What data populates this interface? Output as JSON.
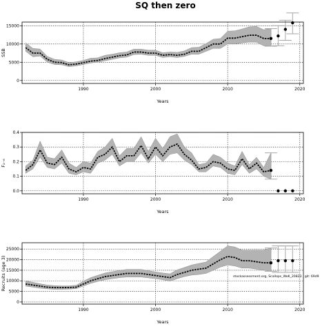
{
  "title": "SQ then zero",
  "note": "stockassessment.org, Scallops_WoK_20823 , git: 69d9",
  "chart_data": [
    {
      "type": "line",
      "ylabel": "SSB",
      "xlabel": "Years",
      "xlim": [
        1981.5,
        2020.5
      ],
      "ylim": [
        -800,
        16000
      ],
      "xticks": [
        1990,
        2000,
        2010,
        2020
      ],
      "yticks": [
        0,
        5000,
        10000,
        15000
      ],
      "ytick_labels": [
        "0",
        "5000",
        "10000",
        "15000"
      ],
      "grid": true,
      "x": [
        1982,
        1983,
        1984,
        1985,
        1986,
        1987,
        1988,
        1989,
        1990,
        1991,
        1992,
        1993,
        1994,
        1995,
        1996,
        1997,
        1998,
        1999,
        2000,
        2001,
        2002,
        2003,
        2004,
        2005,
        2006,
        2007,
        2008,
        2009,
        2010,
        2011,
        2012,
        2013,
        2014,
        2015,
        2016
      ],
      "y": [
        9000,
        7500,
        7500,
        5800,
        5000,
        4900,
        4300,
        4500,
        4900,
        5300,
        5500,
        6000,
        6400,
        6800,
        7000,
        7800,
        7800,
        7500,
        7500,
        6900,
        7100,
        6900,
        7200,
        8000,
        8000,
        9000,
        10000,
        10000,
        11600,
        11600,
        12000,
        12400,
        12400,
        11500,
        11500
      ],
      "lower": [
        8000,
        6500,
        6700,
        5000,
        4400,
        4300,
        3800,
        4000,
        4400,
        4800,
        5000,
        5400,
        5800,
        6200,
        6400,
        7100,
        7200,
        6900,
        6900,
        6300,
        6500,
        6300,
        6600,
        7200,
        7200,
        8000,
        8800,
        8800,
        10000,
        10000,
        10300,
        10500,
        10500,
        9500,
        9400
      ],
      "upper": [
        10300,
        8800,
        8600,
        6600,
        5800,
        5600,
        4900,
        5100,
        5500,
        6100,
        6200,
        6900,
        7200,
        7600,
        7800,
        8600,
        8600,
        8300,
        8300,
        7600,
        7800,
        7700,
        8100,
        9000,
        9100,
        10100,
        11300,
        11500,
        13500,
        13600,
        14100,
        14700,
        14800,
        13900,
        14200
      ],
      "forecast": {
        "x": [
          2017,
          2018,
          2019
        ],
        "y": [
          12200,
          14000,
          15800
        ],
        "lower": [
          9500,
          11000,
          12800
        ],
        "upper": [
          15000,
          16500,
          18500
        ]
      }
    },
    {
      "type": "line",
      "ylabel": "F₂₋₆",
      "xlabel": "Years",
      "xlim": [
        1981.5,
        2020.5
      ],
      "ylim": [
        -0.02,
        0.4
      ],
      "xticks": [
        1990,
        2000,
        2010,
        2020
      ],
      "yticks": [
        0,
        0.1,
        0.2,
        0.3,
        0.4
      ],
      "ytick_labels": [
        "0.0",
        "0.1",
        "0.2",
        "0.3",
        "0.4"
      ],
      "grid": true,
      "x": [
        1982,
        1983,
        1984,
        1985,
        1986,
        1987,
        1988,
        1989,
        1990,
        1991,
        1992,
        1993,
        1994,
        1995,
        1996,
        1997,
        1998,
        1999,
        2000,
        2001,
        2002,
        2003,
        2004,
        2005,
        2006,
        2007,
        2008,
        2009,
        2010,
        2011,
        2012,
        2013,
        2014,
        2015,
        2016
      ],
      "y": [
        0.14,
        0.18,
        0.28,
        0.19,
        0.18,
        0.23,
        0.15,
        0.13,
        0.16,
        0.15,
        0.23,
        0.25,
        0.3,
        0.2,
        0.24,
        0.24,
        0.31,
        0.22,
        0.3,
        0.24,
        0.3,
        0.32,
        0.25,
        0.21,
        0.15,
        0.16,
        0.2,
        0.19,
        0.15,
        0.14,
        0.22,
        0.15,
        0.19,
        0.13,
        0.14
      ],
      "lower": [
        0.12,
        0.15,
        0.23,
        0.16,
        0.15,
        0.19,
        0.12,
        0.11,
        0.13,
        0.12,
        0.19,
        0.21,
        0.25,
        0.17,
        0.2,
        0.2,
        0.26,
        0.19,
        0.25,
        0.2,
        0.25,
        0.26,
        0.21,
        0.18,
        0.13,
        0.13,
        0.17,
        0.16,
        0.12,
        0.11,
        0.18,
        0.12,
        0.15,
        0.1,
        0.08
      ],
      "upper": [
        0.17,
        0.21,
        0.34,
        0.23,
        0.22,
        0.28,
        0.19,
        0.16,
        0.2,
        0.19,
        0.27,
        0.3,
        0.36,
        0.24,
        0.29,
        0.29,
        0.37,
        0.27,
        0.36,
        0.29,
        0.37,
        0.39,
        0.3,
        0.26,
        0.18,
        0.19,
        0.25,
        0.23,
        0.19,
        0.17,
        0.27,
        0.18,
        0.23,
        0.16,
        0.26
      ],
      "forecast": {
        "x": [
          2017,
          2018,
          2019
        ],
        "y": [
          0,
          0,
          0
        ],
        "lower": [
          0,
          0,
          0
        ],
        "upper": [
          0,
          0,
          0
        ]
      }
    },
    {
      "type": "line",
      "ylabel": "Recruits (age 3)",
      "xlabel": "Years",
      "xlim": [
        1981.5,
        2020.5
      ],
      "ylim": [
        -1000,
        28000
      ],
      "xticks": [
        1990,
        2000,
        2010,
        2020
      ],
      "yticks": [
        0,
        5000,
        10000,
        15000,
        20000,
        25000
      ],
      "ytick_labels": [
        "0",
        "5000",
        "10000",
        "15000",
        "20000",
        "25000"
      ],
      "grid": true,
      "x": [
        1982,
        1983,
        1984,
        1985,
        1986,
        1987,
        1988,
        1989,
        1990,
        1991,
        1992,
        1993,
        1994,
        1995,
        1996,
        1997,
        1998,
        1999,
        2000,
        2001,
        2002,
        2003,
        2004,
        2005,
        2006,
        2007,
        2008,
        2009,
        2010,
        2011,
        2012,
        2013,
        2014,
        2015,
        2016
      ],
      "y": [
        8500,
        8000,
        7500,
        7000,
        6800,
        6800,
        6800,
        7000,
        8500,
        10000,
        11000,
        12000,
        12500,
        13000,
        13500,
        13500,
        13500,
        13000,
        12500,
        12000,
        11500,
        13000,
        14000,
        15000,
        15500,
        16000,
        18000,
        20000,
        21500,
        21000,
        19500,
        19500,
        19000,
        18500,
        18500
      ],
      "lower": [
        7500,
        7000,
        6500,
        6200,
        6000,
        6000,
        6100,
        6300,
        7500,
        8800,
        9700,
        10500,
        11000,
        11500,
        11800,
        11800,
        11800,
        11400,
        11000,
        10500,
        9800,
        11000,
        12000,
        12700,
        13000,
        13500,
        15000,
        16500,
        17500,
        17000,
        16000,
        16000,
        15500,
        15000,
        14500
      ],
      "upper": [
        10000,
        9300,
        8600,
        8000,
        7700,
        7600,
        7600,
        7900,
        9800,
        11500,
        12600,
        13700,
        14300,
        14900,
        15400,
        15400,
        15400,
        14800,
        14200,
        13700,
        13300,
        15200,
        16300,
        17500,
        18200,
        18900,
        21500,
        24000,
        26500,
        26000,
        24500,
        24500,
        24500,
        24500,
        25500
      ],
      "forecast": {
        "x": [
          2017,
          2018,
          2019
        ],
        "y": [
          19500,
          19500,
          19500
        ],
        "lower": [
          14000,
          14000,
          14000
        ],
        "upper": [
          26500,
          26500,
          26500
        ]
      }
    }
  ]
}
